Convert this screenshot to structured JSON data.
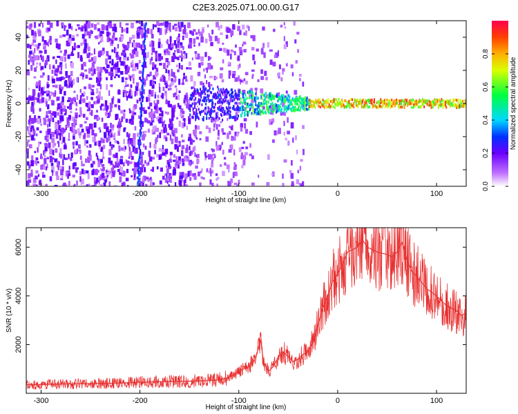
{
  "figure": {
    "title": "C2E3.2025.071.00.00.G17"
  },
  "colors": {
    "frame": "#000000",
    "snr_line": "#e83030",
    "background": "#ffffff"
  },
  "chart_data": [
    {
      "type": "heatmap",
      "xlabel": "Height of straight line (km)",
      "ylabel": "Frequency (Hz)",
      "xlim": [
        -315,
        130
      ],
      "ylim": [
        -50,
        50
      ],
      "xticks": [
        -300,
        -200,
        -100,
        0,
        100
      ],
      "yticks": [
        -40,
        -20,
        0,
        20,
        40
      ],
      "grid": false,
      "colormap": "rainbow (white-violet-blue-cyan-green-yellow-red)",
      "colorbar": {
        "label": "Normalized spectral amplitude",
        "range": [
          0.0,
          1.0
        ],
        "ticks": [
          0.0,
          0.2,
          0.4,
          0.6,
          0.8
        ]
      },
      "features": {
        "noise_region_km": [
          -315,
          -95
        ],
        "vertical_streak_km": -200,
        "signal_line_frequency_hz": 0,
        "signal_emerges_km": -100,
        "high_amplitude_start_km": -30
      }
    },
    {
      "type": "line",
      "xlabel": "Height of straight line (km)",
      "ylabel": "SNR (10 * v/v)",
      "xlim": [
        -315,
        130
      ],
      "ylim": [
        0,
        6800
      ],
      "xticks": [
        -300,
        -200,
        -100,
        0,
        100
      ],
      "yticks": [
        2000,
        4000,
        6000
      ],
      "grid": false,
      "series": [
        {
          "x": [
            -315,
            -280,
            -250,
            -220,
            -200,
            -180,
            -150,
            -130,
            -120,
            -110,
            -100,
            -95,
            -90,
            -85,
            -82,
            -78,
            -75,
            -70,
            -65,
            -60,
            -55,
            -50,
            -45,
            -40,
            -35,
            -30,
            -25,
            -20,
            -15,
            -10,
            -5,
            0,
            5,
            10,
            15,
            20,
            25,
            30,
            40,
            50,
            55,
            60,
            65,
            70,
            75,
            80,
            90,
            100,
            110,
            120,
            125,
            130
          ],
          "y": [
            350,
            380,
            400,
            420,
            450,
            480,
            500,
            520,
            550,
            650,
            900,
            1000,
            1100,
            1300,
            1600,
            2200,
            1300,
            900,
            1100,
            1500,
            1700,
            1500,
            1300,
            1400,
            1600,
            1700,
            2100,
            2800,
            3500,
            4000,
            4600,
            4900,
            5300,
            5800,
            5900,
            6000,
            6300,
            6000,
            5800,
            5700,
            5600,
            5800,
            6200,
            5500,
            5000,
            4800,
            4300,
            4000,
            3600,
            3400,
            3200,
            3300
          ]
        }
      ]
    }
  ]
}
